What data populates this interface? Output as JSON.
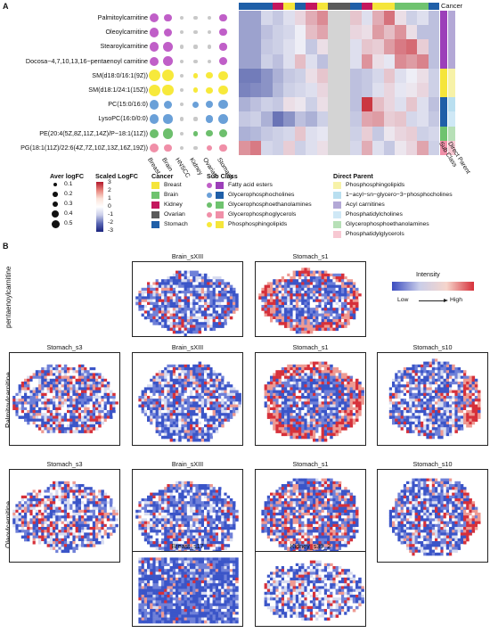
{
  "panel_a": {
    "letter": "A",
    "rows": [
      "Palmitoylcarnitine",
      "Oleoylcarnitine",
      "Stearoylcarnitine",
      "Docosa−4,7,10,13,16−pentaenoyl carnitine",
      "SM(d18:0/16:1(9Z))",
      "SM(d18:1/24:1(15Z))",
      "PC(15:0/16:0)",
      "LysoPC(16:0/0:0)",
      "PE(20:4(5Z,8Z,11Z,14Z)/P−18:1(11Z))",
      "PG(18:1(11Z)/22:6(4Z,7Z,10Z,13Z,16Z,19Z))"
    ],
    "columns": [
      "Breast",
      "Brain",
      "HNSCC",
      "Kidney",
      "Ovarian",
      "Stomach"
    ],
    "dot_sizes": [
      [
        0.3,
        0.2,
        0.05,
        0.05,
        0.05,
        0.2
      ],
      [
        0.35,
        0.25,
        0.05,
        0.05,
        0.05,
        0.2
      ],
      [
        0.3,
        0.35,
        0.05,
        0.05,
        0.05,
        0.2
      ],
      [
        0.3,
        0.35,
        0.05,
        0.05,
        0.05,
        0.25
      ],
      [
        0.5,
        0.5,
        0.05,
        0.1,
        0.15,
        0.3
      ],
      [
        0.5,
        0.45,
        0.05,
        0.1,
        0.15,
        0.3
      ],
      [
        0.35,
        0.25,
        0.05,
        0.15,
        0.2,
        0.3
      ],
      [
        0.35,
        0.3,
        0.05,
        0.05,
        0.2,
        0.35
      ],
      [
        0.3,
        0.4,
        0.05,
        0.1,
        0.15,
        0.25
      ],
      [
        0.3,
        0.2,
        0.05,
        0.05,
        0.1,
        0.2
      ]
    ],
    "dot_colors": [
      "#c05fc8",
      "#c05fc8",
      "#c05fc8",
      "#c05fc8",
      "#f7e93b",
      "#f7e93b",
      "#6aa0d8",
      "#6aa0d8",
      "#6dbf6d",
      "#f08fa8"
    ],
    "cancer_header_label": "Cancer",
    "sub_class_label": "Sub Class",
    "direct_parent_label": "Direct Parent",
    "cancer_strip": [
      "#1f5fa8",
      "#1f5fa8",
      "#1f5fa8",
      "#c4175d",
      "#f5e53a",
      "#1f5fa8",
      "#c4175d",
      "#f5e53a",
      "#5a5a5a",
      "#5a5a5a",
      "#1f5fa8",
      "#c4175d",
      "#f5e53a",
      "#f5e53a",
      "#6fc36f",
      "#6fc36f",
      "#6fc36f",
      "#1f5fa8"
    ],
    "heatmap": [
      [
        -1,
        -1,
        -0.3,
        -0.5,
        -0.2,
        0.3,
        0.8,
        1.2,
        -1,
        -1,
        0.5,
        -0.2,
        0.8,
        1.5,
        0.2,
        -0.4,
        -0.2,
        -0.6
      ],
      [
        -1,
        -1,
        -0.6,
        -0.4,
        -0.3,
        0,
        0.6,
        0.9,
        -1,
        -1,
        0.3,
        0.2,
        1,
        0.6,
        1.1,
        0.2,
        -0.6,
        -0.6
      ],
      [
        -1,
        -1,
        -0.5,
        -0.4,
        -0.2,
        0,
        -0.5,
        0.2,
        -1,
        -1,
        -0.2,
        0.5,
        0.4,
        1,
        1.4,
        1.6,
        0.4,
        -0.6
      ],
      [
        -1,
        -1,
        -0.4,
        -0.6,
        -0.2,
        0.6,
        -0.2,
        -0.6,
        -1,
        -1,
        -0.2,
        1.1,
        0.2,
        -0.1,
        1.2,
        1,
        1.3,
        -0.6
      ],
      [
        -1.5,
        -1.5,
        -1.2,
        -0.8,
        -0.5,
        -0.4,
        0.2,
        0.5,
        -1,
        -1,
        -0.6,
        -0.5,
        -0.3,
        0.5,
        -0.2,
        0,
        0.2,
        -0.4
      ],
      [
        -1.4,
        -1.3,
        -1.2,
        -0.7,
        -0.4,
        -0.3,
        -0.2,
        0.3,
        -1,
        -1,
        -0.6,
        -0.5,
        -0.2,
        0.3,
        -0.1,
        0.1,
        0.3,
        -0.4
      ],
      [
        -0.8,
        -0.6,
        -0.4,
        -0.5,
        0.2,
        0.1,
        -0.4,
        0.2,
        -1,
        -1,
        -0.6,
        2.2,
        0.6,
        0.3,
        -0.2,
        0.5,
        -0.2,
        -0.6
      ],
      [
        -0.5,
        -0.4,
        -0.8,
        -1.6,
        -1.2,
        -0.6,
        -0.8,
        -0.4,
        -1,
        -1,
        -0.5,
        0.9,
        1,
        0.4,
        0.5,
        -0.3,
        -0.2,
        -0.5
      ],
      [
        -0.8,
        -0.7,
        -0.5,
        -0.4,
        -0.3,
        0.5,
        -0.2,
        -0.1,
        -1,
        -1,
        -0.4,
        0.4,
        -0.5,
        0.1,
        0.3,
        0.4,
        -0.4,
        -0.3
      ],
      [
        1.1,
        1.4,
        -0.3,
        -0.4,
        0.4,
        -0.4,
        -0.2,
        0.2,
        -1,
        -1,
        -0.3,
        0.8,
        -0.2,
        -0.5,
        0.1,
        0.3,
        0.9,
        -0.4
      ]
    ],
    "sub_class_strip": [
      "#9c3fb9",
      "#9c3fb9",
      "#9c3fb9",
      "#9c3fb9",
      "#f5e53a",
      "#f5e53a",
      "#1f5fa8",
      "#1f5fa8",
      "#6fc36f",
      "#f08fa8"
    ],
    "direct_parent_strip": [
      "#b3a8d6",
      "#b3a8d6",
      "#b3a8d6",
      "#b3a8d6",
      "#f7f2a8",
      "#f7f2a8",
      "#b9dff0",
      "#cfe8f6",
      "#b7e0b7",
      "#f7c8d2"
    ],
    "legends": {
      "aver_logfc": {
        "title": "Aver logFC",
        "items": [
          "0.1",
          "0.2",
          "0.3",
          "0.4",
          "0.5"
        ]
      },
      "scaled_logfc": {
        "title": "Scaled LogFC",
        "ticks": [
          "3",
          "2",
          "1",
          "0",
          "-1",
          "-2",
          "-3"
        ]
      },
      "cancer": {
        "title": "Cancer",
        "items": [
          {
            "label": "Breast",
            "color": "#f5e53a"
          },
          {
            "label": "Brain",
            "color": "#6fc36f"
          },
          {
            "label": "Kidney",
            "color": "#c4175d"
          },
          {
            "label": "Ovarian",
            "color": "#5a5a5a"
          },
          {
            "label": "Stomach",
            "color": "#1f5fa8"
          }
        ]
      },
      "sub_class": {
        "title": "Sub Class",
        "items": [
          {
            "label": "Fatty acid esters",
            "color": "#9c3fb9",
            "dot": "#c05fc8"
          },
          {
            "label": "Glycerophosphocholines",
            "color": "#1f5fa8",
            "dot": "#6aa0d8"
          },
          {
            "label": "Glycerophosphoethanolamines",
            "color": "#6fc36f",
            "dot": "#6dbf6d"
          },
          {
            "label": "Glycerophosphoglycerols",
            "color": "#f08fa8",
            "dot": "#f08fa8"
          },
          {
            "label": "Phosphosphingolipids",
            "color": "#f5e53a",
            "dot": "#f7e93b"
          }
        ]
      },
      "direct_parent": {
        "title": "Direct Parent",
        "items": [
          {
            "label": "Phosphosphingolipids",
            "color": "#f7f2a8"
          },
          {
            "label": "1−acyl−sn−glycero−3−phosphocholines",
            "color": "#b9dff0"
          },
          {
            "label": "Acyl carnitines",
            "color": "#b3a8d6"
          },
          {
            "label": "Phosphatidylcholines",
            "color": "#cfe8f6"
          },
          {
            "label": "Glycerophosphoethanolamines",
            "color": "#b7e0b7"
          },
          {
            "label": "Phosphatidylglycerols",
            "color": "#f7c8d2"
          }
        ]
      }
    }
  },
  "panel_b": {
    "letter": "B",
    "intensity": {
      "title": "Intensity",
      "low": "Low",
      "high": "High"
    },
    "row_labels": [
      "pentaenoylcarnitine",
      "Palmitoylcarnitine",
      "Oleoylcarnitine"
    ],
    "tiles": [
      {
        "title": "Brain_sXIII",
        "kind": "brain"
      },
      {
        "title": "Stomach_s1",
        "kind": "stomach_hot"
      },
      {
        "title": "Stomach_s3",
        "kind": "stomach3"
      },
      {
        "title": "Brain_sXIII",
        "kind": "brain"
      },
      {
        "title": "Stomach_s1",
        "kind": "stomach_hot"
      },
      {
        "title": "Stomach_s10",
        "kind": "stomach10"
      },
      {
        "title": "Stomach_s3",
        "kind": "stomach3"
      },
      {
        "title": "Brain_sXIII",
        "kind": "brain"
      },
      {
        "title": "Stomach_s1",
        "kind": "stomach_mix"
      },
      {
        "title": "Stomach_s10",
        "kind": "stomach10"
      },
      {
        "title": "Breast_s17",
        "kind": "breast"
      },
      {
        "title": "Kidney_s39_2",
        "kind": "kidney"
      }
    ]
  }
}
